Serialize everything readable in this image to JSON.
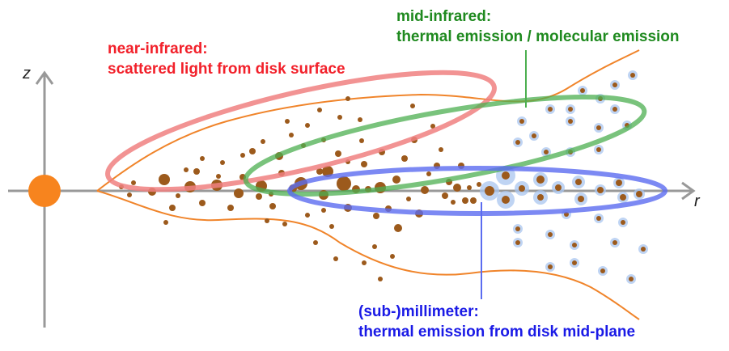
{
  "axes": {
    "z_label": "z",
    "r_label": "r"
  },
  "labels": {
    "near_ir": {
      "line1": "near-infrared:",
      "line2": "scattered light from disk surface"
    },
    "mid_ir": {
      "line1": "mid-infrared:",
      "line2": "thermal emission / molecular emission"
    },
    "submm": {
      "line1": "(sub-)millimeter:",
      "line2": "thermal emission from disk mid-plane"
    }
  },
  "colors": {
    "near_ir": "#f2202a",
    "mid_ir": "#1f8a1f",
    "submm": "#1a1ae6",
    "disk_outline": "#f0842a",
    "star": "#f7841e",
    "dust": "#9c5a1c",
    "axis": "#999999"
  }
}
